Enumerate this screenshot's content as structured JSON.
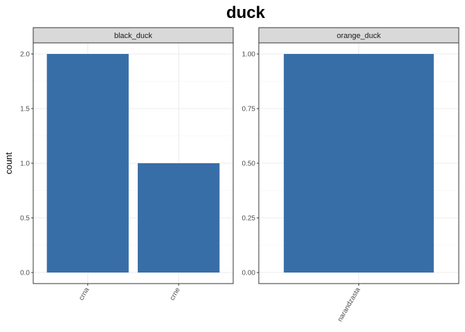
{
  "chart_data": {
    "type": "bar",
    "title": "duck",
    "ylabel": "count",
    "xlabel": "",
    "grid": true,
    "colors": {
      "bar": "#386ea7",
      "strip_fill": "#d9d9d9",
      "strip_border": "#333333",
      "panel_border": "#333333",
      "grid_major": "#ebebeb",
      "grid_minor": "#f2f2f2"
    },
    "facets": [
      {
        "label": "black_duck",
        "categories": [
          "crna",
          "crne"
        ],
        "values": [
          2,
          1
        ],
        "ylim": [
          0,
          2
        ],
        "y_ticks": [
          0,
          0.5,
          1,
          1.5,
          2
        ],
        "y_tick_labels": [
          "0.0",
          "0.5",
          "1.0",
          "1.5",
          "2.0"
        ]
      },
      {
        "label": "orange_duck",
        "categories": [
          "narandzasta"
        ],
        "values": [
          1
        ],
        "ylim": [
          0,
          1
        ],
        "y_ticks": [
          0,
          0.25,
          0.5,
          0.75,
          1
        ],
        "y_tick_labels": [
          "0.00",
          "0.25",
          "0.50",
          "0.75",
          "1.00"
        ]
      }
    ]
  }
}
